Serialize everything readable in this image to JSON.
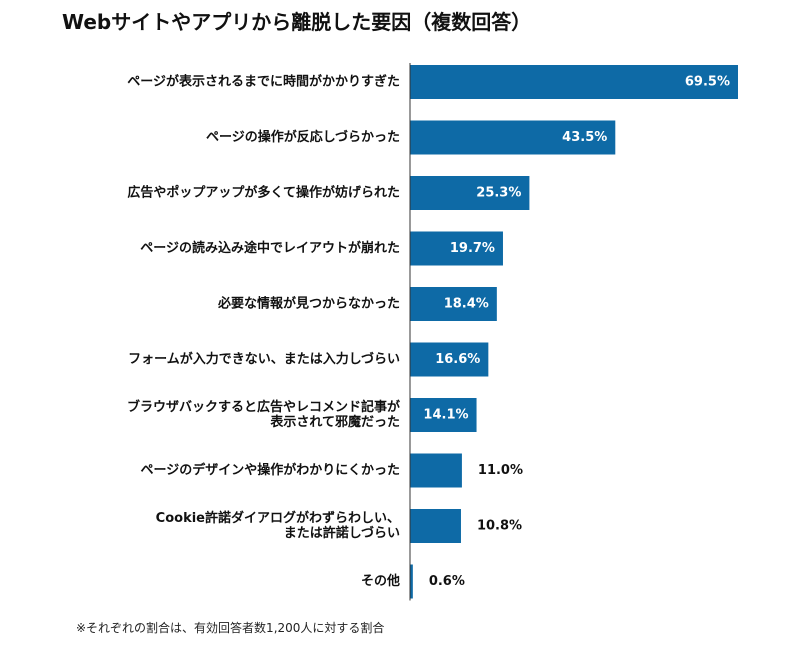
{
  "title": "Webサイトやアプリから離脱した要因（複数回答）",
  "footnote": "※それぞれの割合は、有効回答者数1,200人に対する割合",
  "colors": {
    "bar": "#0e6aa6",
    "label_inside": "#ffffff",
    "label_outside": "#111111",
    "axis": "#333333"
  },
  "chart_data": {
    "type": "bar",
    "orientation": "horizontal",
    "categories": [
      "ページが表示されるまでに時間がかかりすぎた",
      "ページの操作が反応しづらかった",
      "広告やポップアップが多くて操作が妨げられた",
      "ページの読み込み途中でレイアウトが崩れた",
      "必要な情報が見つからなかった",
      "フォームが入力できない、または入力しづらい",
      "ブラウザバックすると広告やレコメンド記事が\n表示されて邪魔だった",
      "ページのデザインや操作がわかりにくかった",
      "Cookie許諾ダイアログがわずらわしい、\nまたは許諾しづらい",
      "その他"
    ],
    "values": [
      69.5,
      43.5,
      25.3,
      19.7,
      18.4,
      16.6,
      14.1,
      11.0,
      10.8,
      0.6
    ],
    "value_labels": [
      "69.5%",
      "43.5%",
      "25.3%",
      "19.7%",
      "18.4%",
      "16.6%",
      "14.1%",
      "11.0%",
      "10.8%",
      "0.6%"
    ],
    "xlim": [
      0,
      69.5
    ],
    "grid": false,
    "legend": "none"
  }
}
